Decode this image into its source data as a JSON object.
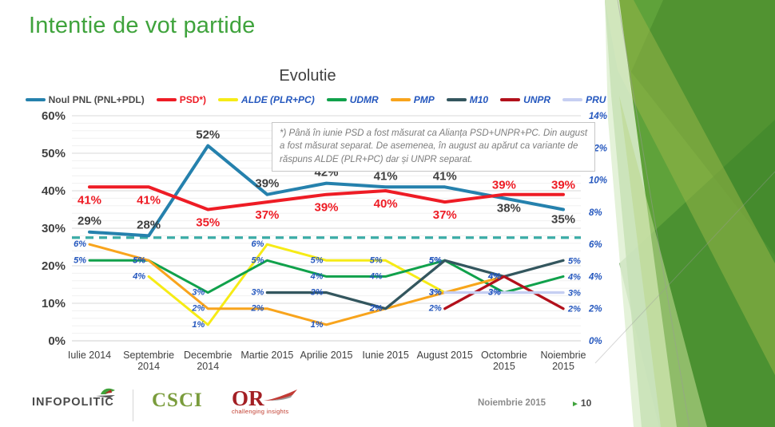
{
  "slide": {
    "title": "Intentie de vot partide"
  },
  "chart_data": {
    "type": "line",
    "title": "Evolutie",
    "categories": [
      "Iulie 2014",
      "Septembrie\n2014",
      "Decembrie\n2014",
      "Martie 2015",
      "Aprilie 2015",
      "Iunie 2015",
      "August 2015",
      "Octombrie\n2015",
      "Noiembrie\n2015"
    ],
    "left_axis": {
      "min": 0,
      "max": 60,
      "step": 10,
      "tick_labels": [
        "0%",
        "10%",
        "20%",
        "30%",
        "40%",
        "50%",
        "60%"
      ]
    },
    "right_axis": {
      "min": 0,
      "max": 14,
      "step": 2,
      "tick_labels": [
        "0%",
        "2%",
        "4%",
        "6%",
        "8%",
        "10%",
        "12%",
        "14%"
      ]
    },
    "reference_line": {
      "axis": "left",
      "value": 27.5,
      "style": "dashed",
      "color": "#31a8a2"
    },
    "footnote": "*) Până în iunie PSD a fost măsurat ca Alianța PSD+UNPR+PC. Din august a fost măsurat separat. De asemenea, în august au apărut ca variante de răspuns ALDE (PLR+PC) dar și UNPR separat.",
    "grid": true,
    "legend_position": "top",
    "series": [
      {
        "name": "Noul PNL (PNL+PDL)",
        "color": "#2581ad",
        "label_color": "#3f3f3f",
        "legend_text_color": "#4a4a4a",
        "italic": false,
        "axis": "left",
        "values": [
          29,
          28,
          52,
          39,
          42,
          41,
          41,
          38,
          35
        ],
        "labels": [
          "29%",
          "28%",
          "52%",
          "39%",
          "42%",
          "41%",
          "41%",
          "38%",
          "35%"
        ]
      },
      {
        "name": "PSD*)",
        "color": "#ee1c25",
        "label_color": "#ee1c25",
        "legend_text_color": "#ee1c25",
        "italic": false,
        "axis": "left",
        "values": [
          41,
          41,
          35,
          37,
          39,
          40,
          37,
          39,
          39
        ],
        "labels": [
          "41%",
          "41%",
          "35%",
          "37%",
          "39%",
          "40%",
          "37%",
          "39%",
          "39%"
        ]
      },
      {
        "name": "ALDE (PLR+PC)",
        "color": "#f6eb16",
        "label_color": "#2457be",
        "legend_text_color": "#2457be",
        "italic": true,
        "axis": "right",
        "values": [
          null,
          4,
          1,
          6,
          5,
          5,
          3,
          4,
          null
        ],
        "labels": [
          null,
          "4%",
          "1%",
          "6%",
          "5%",
          "5%",
          "3%",
          "4%",
          null
        ]
      },
      {
        "name": "UDMR",
        "color": "#10a14b",
        "label_color": "#2457be",
        "legend_text_color": "#2457be",
        "italic": true,
        "axis": "right",
        "values": [
          5,
          5,
          3,
          5,
          4,
          4,
          5,
          3,
          4
        ],
        "labels": [
          "5%",
          "5%",
          "3%",
          "5%",
          "4%",
          "4%",
          "5%",
          "3%",
          "4%"
        ]
      },
      {
        "name": "PMP",
        "color": "#f8a41c",
        "label_color": "#2457be",
        "legend_text_color": "#2457be",
        "italic": true,
        "axis": "right",
        "values": [
          6,
          5,
          2,
          2,
          1,
          2,
          3,
          4,
          null
        ],
        "labels": [
          "6%",
          "5%",
          "2%",
          "2%",
          "1%",
          "2%",
          "3%",
          "4%",
          null
        ]
      },
      {
        "name": "M10",
        "color": "#33565e",
        "label_color": "#2457be",
        "legend_text_color": "#2457be",
        "italic": true,
        "axis": "right",
        "values": [
          null,
          null,
          null,
          3,
          3,
          2,
          5,
          4,
          5
        ],
        "labels": [
          null,
          null,
          null,
          "3%",
          "3%",
          "2%",
          "5%",
          "4%",
          "5%"
        ]
      },
      {
        "name": "UNPR",
        "color": "#b2101b",
        "label_color": "#2457be",
        "legend_text_color": "#2457be",
        "italic": true,
        "axis": "right",
        "values": [
          null,
          null,
          null,
          null,
          null,
          null,
          2,
          4,
          2
        ],
        "labels": [
          null,
          null,
          null,
          null,
          null,
          null,
          "2%",
          "4%",
          "2%"
        ]
      },
      {
        "name": "PRU",
        "color": "#c6cff2",
        "label_color": "#2457be",
        "legend_text_color": "#2457be",
        "italic": true,
        "axis": "right",
        "values": [
          null,
          null,
          null,
          null,
          null,
          null,
          3,
          3,
          3
        ],
        "labels": [
          null,
          null,
          null,
          null,
          null,
          null,
          "3%",
          "3%",
          "3%"
        ]
      }
    ]
  },
  "footer": {
    "brand1": "INFOPOLITIC",
    "brand2": "CSCI",
    "brand3": "OR",
    "brand3_sub": "challenging insights",
    "date": "Noiembrie 2015",
    "page_arrow": "►",
    "page": "10"
  }
}
